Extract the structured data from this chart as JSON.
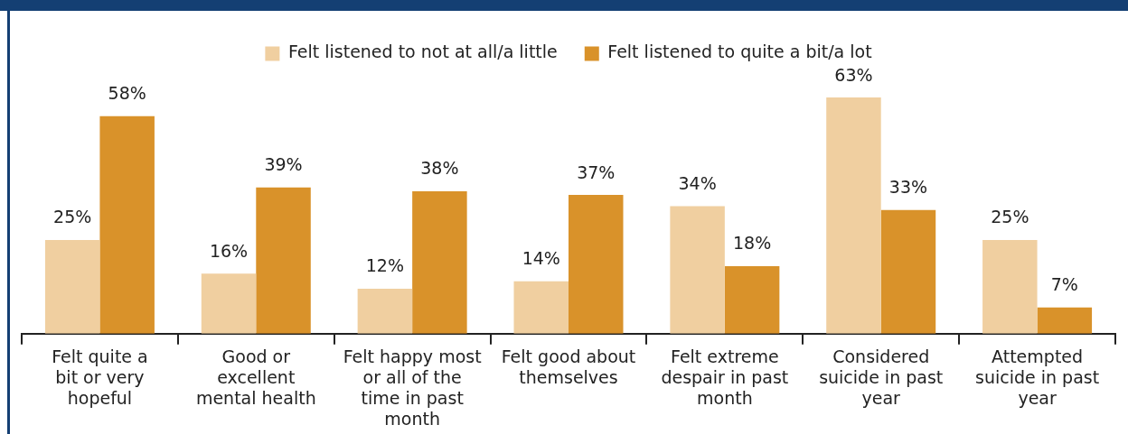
{
  "chart_data": {
    "type": "bar",
    "categories": [
      "Felt quite a bit or very hopeful",
      "Good or excellent mental health",
      "Felt happy most or all of the time in past month",
      "Felt good about themselves",
      "Felt extreme despair in past month",
      "Considered suicide in past year",
      "Attempted suicide in past year"
    ],
    "series": [
      {
        "name": "Felt listened to not at all/a little",
        "color": "#f0cfa0",
        "values": [
          25,
          16,
          12,
          14,
          34,
          63,
          25
        ],
        "value_labels": [
          "25%",
          "16%",
          "12%",
          "14%",
          "34%",
          "63%",
          "25%"
        ]
      },
      {
        "name": "Felt listened to quite a bit/a lot",
        "color": "#d9922a",
        "values": [
          58,
          39,
          38,
          37,
          18,
          33,
          7
        ],
        "value_labels": [
          "58%",
          "39%",
          "38%",
          "37%",
          "18%",
          "33%",
          "7%"
        ]
      }
    ],
    "legend": "top"
  }
}
